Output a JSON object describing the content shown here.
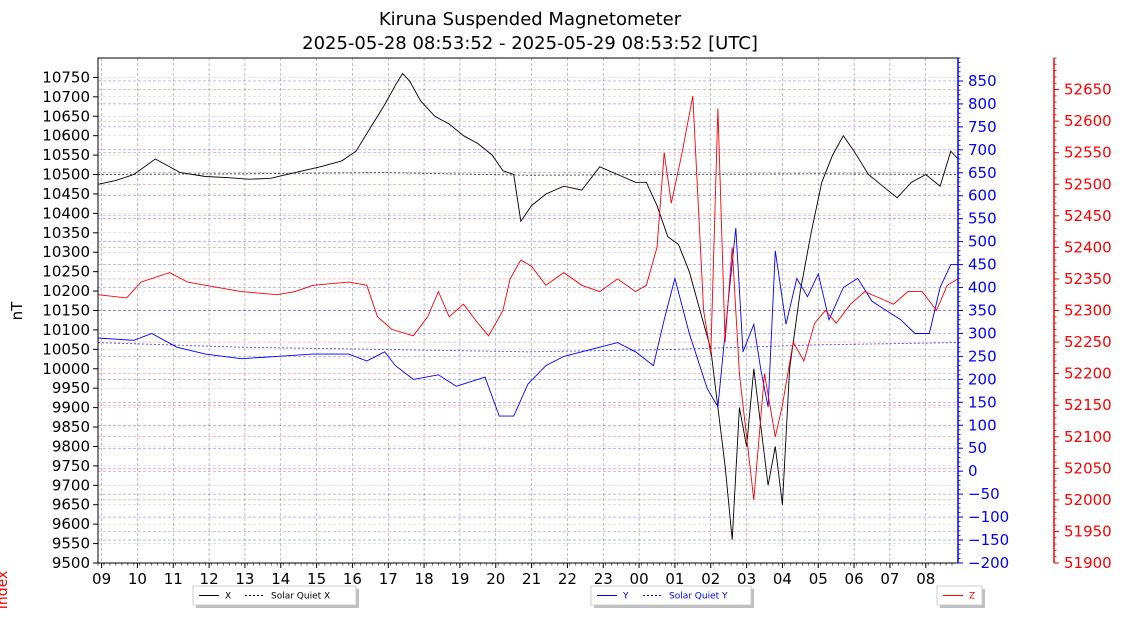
{
  "colors": {
    "x": "#000000",
    "y": "#0000ff",
    "z": "#ff0000",
    "grid_gray": "#9a9a9a"
  },
  "chart_data": {
    "type": "line",
    "title": "Kiruna Suspended Magnetometer",
    "subtitle": "2025-05-28 08:53:52 - 2025-05-29 08:53:52 [UTC]",
    "time_unit": "hours from 08:53:52 UTC",
    "x_range": [
      0,
      24
    ],
    "x_ticks": [
      {
        "label": "09",
        "t": 0.1
      },
      {
        "label": "10",
        "t": 1.1
      },
      {
        "label": "11",
        "t": 2.1
      },
      {
        "label": "12",
        "t": 3.1
      },
      {
        "label": "13",
        "t": 4.1
      },
      {
        "label": "14",
        "t": 5.1
      },
      {
        "label": "15",
        "t": 6.1
      },
      {
        "label": "16",
        "t": 7.1
      },
      {
        "label": "17",
        "t": 8.1
      },
      {
        "label": "18",
        "t": 9.1
      },
      {
        "label": "19",
        "t": 10.1
      },
      {
        "label": "20",
        "t": 11.1
      },
      {
        "label": "21",
        "t": 12.1
      },
      {
        "label": "22",
        "t": 13.1
      },
      {
        "label": "23",
        "t": 14.1
      },
      {
        "label": "00",
        "t": 15.1
      },
      {
        "label": "01",
        "t": 16.1
      },
      {
        "label": "02",
        "t": 17.1
      },
      {
        "label": "03",
        "t": 18.1
      },
      {
        "label": "04",
        "t": 19.1
      },
      {
        "label": "05",
        "t": 20.1
      },
      {
        "label": "06",
        "t": 21.1
      },
      {
        "label": "07",
        "t": 22.1
      },
      {
        "label": "08",
        "t": 23.1
      }
    ],
    "left_axis": {
      "label": "nT",
      "range": [
        9500,
        10800
      ],
      "tick_step": 50,
      "tick_start": 9500,
      "tick_end": 10750
    },
    "right_axis_y": {
      "range": [
        -200,
        900
      ],
      "tick_step": 50,
      "tick_start": -200,
      "tick_end": 850
    },
    "right_axis_z": {
      "range": [
        51900,
        52700
      ],
      "tick_step": 50,
      "tick_start": 51900,
      "tick_end": 52650
    },
    "series": [
      {
        "name": "X",
        "axis": "left",
        "style": "solid",
        "points": [
          [
            0,
            10475
          ],
          [
            0.5,
            10485
          ],
          [
            1,
            10500
          ],
          [
            1.6,
            10540
          ],
          [
            2.3,
            10505
          ],
          [
            3,
            10495
          ],
          [
            3.6,
            10492
          ],
          [
            4.2,
            10488
          ],
          [
            4.8,
            10490
          ],
          [
            5.5,
            10505
          ],
          [
            6.2,
            10520
          ],
          [
            6.8,
            10535
          ],
          [
            7.2,
            10560
          ],
          [
            7.6,
            10620
          ],
          [
            8.0,
            10680
          ],
          [
            8.3,
            10730
          ],
          [
            8.5,
            10760
          ],
          [
            8.7,
            10740
          ],
          [
            9.0,
            10690
          ],
          [
            9.4,
            10650
          ],
          [
            9.8,
            10630
          ],
          [
            10.2,
            10600
          ],
          [
            10.6,
            10580
          ],
          [
            11.0,
            10550
          ],
          [
            11.3,
            10510
          ],
          [
            11.6,
            10500
          ],
          [
            11.8,
            10380
          ],
          [
            12.1,
            10420
          ],
          [
            12.5,
            10450
          ],
          [
            13.0,
            10470
          ],
          [
            13.5,
            10460
          ],
          [
            14.0,
            10520
          ],
          [
            14.5,
            10500
          ],
          [
            15.0,
            10480
          ],
          [
            15.3,
            10480
          ],
          [
            15.6,
            10420
          ],
          [
            15.9,
            10340
          ],
          [
            16.2,
            10320
          ],
          [
            16.5,
            10250
          ],
          [
            16.8,
            10150
          ],
          [
            17.1,
            10050
          ],
          [
            17.3,
            9900
          ],
          [
            17.5,
            9750
          ],
          [
            17.7,
            9560
          ],
          [
            17.9,
            9900
          ],
          [
            18.1,
            9800
          ],
          [
            18.3,
            10000
          ],
          [
            18.5,
            9850
          ],
          [
            18.7,
            9700
          ],
          [
            18.9,
            9800
          ],
          [
            19.1,
            9650
          ],
          [
            19.3,
            10000
          ],
          [
            19.6,
            10200
          ],
          [
            19.9,
            10350
          ],
          [
            20.2,
            10480
          ],
          [
            20.5,
            10550
          ],
          [
            20.8,
            10600
          ],
          [
            21.1,
            10560
          ],
          [
            21.5,
            10500
          ],
          [
            21.9,
            10470
          ],
          [
            22.3,
            10440
          ],
          [
            22.7,
            10480
          ],
          [
            23.1,
            10500
          ],
          [
            23.5,
            10470
          ],
          [
            23.8,
            10560
          ],
          [
            24,
            10540
          ]
        ]
      },
      {
        "name": "Solar Quiet X",
        "axis": "left",
        "style": "dotted",
        "points": [
          [
            0,
            10500
          ],
          [
            4,
            10502
          ],
          [
            8,
            10505
          ],
          [
            12,
            10498
          ],
          [
            16,
            10500
          ],
          [
            20,
            10502
          ],
          [
            24,
            10500
          ]
        ]
      },
      {
        "name": "Y",
        "axis": "right_y",
        "style": "solid",
        "points": [
          [
            0,
            290
          ],
          [
            1,
            285
          ],
          [
            1.5,
            300
          ],
          [
            2.2,
            270
          ],
          [
            3,
            255
          ],
          [
            4,
            245
          ],
          [
            5,
            250
          ],
          [
            6,
            255
          ],
          [
            7,
            255
          ],
          [
            7.5,
            240
          ],
          [
            8,
            260
          ],
          [
            8.3,
            230
          ],
          [
            8.8,
            200
          ],
          [
            9.5,
            210
          ],
          [
            10,
            185
          ],
          [
            10.8,
            205
          ],
          [
            11.2,
            120
          ],
          [
            11.6,
            120
          ],
          [
            12,
            190
          ],
          [
            12.5,
            230
          ],
          [
            13,
            250
          ],
          [
            13.5,
            260
          ],
          [
            14,
            270
          ],
          [
            14.5,
            280
          ],
          [
            15,
            260
          ],
          [
            15.5,
            230
          ],
          [
            15.8,
            330
          ],
          [
            16.1,
            420
          ],
          [
            16.5,
            300
          ],
          [
            17,
            180
          ],
          [
            17.3,
            140
          ],
          [
            17.6,
            380
          ],
          [
            17.8,
            530
          ],
          [
            18,
            260
          ],
          [
            18.3,
            320
          ],
          [
            18.5,
            220
          ],
          [
            18.7,
            140
          ],
          [
            18.9,
            480
          ],
          [
            19.2,
            320
          ],
          [
            19.5,
            420
          ],
          [
            19.8,
            380
          ],
          [
            20.1,
            430
          ],
          [
            20.4,
            330
          ],
          [
            20.8,
            400
          ],
          [
            21.2,
            420
          ],
          [
            21.6,
            370
          ],
          [
            22,
            350
          ],
          [
            22.4,
            330
          ],
          [
            22.8,
            300
          ],
          [
            23.2,
            300
          ],
          [
            23.5,
            400
          ],
          [
            23.8,
            450
          ],
          [
            24,
            450
          ]
        ]
      },
      {
        "name": "Solar Quiet Y",
        "axis": "right_y",
        "style": "dotted",
        "points": [
          [
            0,
            280
          ],
          [
            4,
            270
          ],
          [
            8,
            265
          ],
          [
            12,
            260
          ],
          [
            16,
            265
          ],
          [
            20,
            275
          ],
          [
            24,
            280
          ]
        ]
      },
      {
        "name": "Z",
        "axis": "right_z",
        "style": "solid",
        "points": [
          [
            0,
            52325
          ],
          [
            0.8,
            52320
          ],
          [
            1.2,
            52345
          ],
          [
            2,
            52360
          ],
          [
            2.5,
            52345
          ],
          [
            3,
            52340
          ],
          [
            4,
            52330
          ],
          [
            5,
            52325
          ],
          [
            5.5,
            52330
          ],
          [
            6,
            52340
          ],
          [
            7,
            52345
          ],
          [
            7.5,
            52340
          ],
          [
            7.8,
            52290
          ],
          [
            8.2,
            52270
          ],
          [
            8.8,
            52260
          ],
          [
            9.2,
            52290
          ],
          [
            9.5,
            52330
          ],
          [
            9.8,
            52290
          ],
          [
            10.2,
            52310
          ],
          [
            10.6,
            52280
          ],
          [
            10.9,
            52260
          ],
          [
            11.3,
            52300
          ],
          [
            11.5,
            52350
          ],
          [
            11.8,
            52380
          ],
          [
            12.1,
            52370
          ],
          [
            12.5,
            52340
          ],
          [
            13,
            52360
          ],
          [
            13.5,
            52340
          ],
          [
            14,
            52330
          ],
          [
            14.5,
            52350
          ],
          [
            15,
            52330
          ],
          [
            15.3,
            52340
          ],
          [
            15.6,
            52400
          ],
          [
            15.8,
            52550
          ],
          [
            16.0,
            52470
          ],
          [
            16.3,
            52550
          ],
          [
            16.6,
            52640
          ],
          [
            16.9,
            52300
          ],
          [
            17.1,
            52230
          ],
          [
            17.3,
            52620
          ],
          [
            17.5,
            52250
          ],
          [
            17.7,
            52400
          ],
          [
            17.9,
            52200
          ],
          [
            18.1,
            52100
          ],
          [
            18.3,
            52000
          ],
          [
            18.6,
            52200
          ],
          [
            18.9,
            52100
          ],
          [
            19.1,
            52150
          ],
          [
            19.4,
            52250
          ],
          [
            19.7,
            52220
          ],
          [
            20,
            52280
          ],
          [
            20.3,
            52300
          ],
          [
            20.6,
            52280
          ],
          [
            21,
            52310
          ],
          [
            21.4,
            52330
          ],
          [
            21.8,
            52320
          ],
          [
            22.2,
            52310
          ],
          [
            22.6,
            52330
          ],
          [
            23,
            52330
          ],
          [
            23.4,
            52300
          ],
          [
            23.7,
            52340
          ],
          [
            24,
            52350
          ]
        ]
      }
    ],
    "legends": [
      {
        "entries": [
          "X",
          "Solar Quiet X"
        ]
      },
      {
        "entries": [
          "Y",
          "Solar Quiet Y"
        ]
      },
      {
        "entries": [
          "Z"
        ]
      }
    ],
    "cut_off_axis_label": "Index",
    "grid": true
  }
}
